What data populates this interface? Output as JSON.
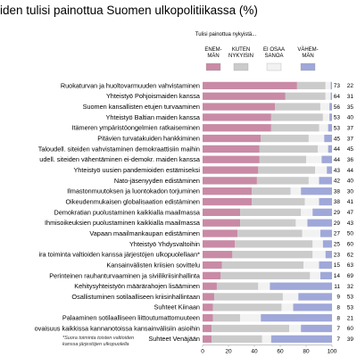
{
  "chart_data": {
    "type": "bar",
    "stacked": true,
    "orientation": "horizontal",
    "title": "iden tulisi painottua Suomen ulkopolitiikassa (%)",
    "legend_title": "Tulisi painottua nykyistä...",
    "series": [
      {
        "name": "ENEM-\nMÄN",
        "color": "#c98aa6"
      },
      {
        "name": "KUTEN\nNYKYISIN",
        "color": "#cbcbcb"
      },
      {
        "name": "EI OSAA\nSANOA",
        "color": "#f2f2f2"
      },
      {
        "name": "VÄHEM-\nMÄN",
        "color": "#9fa8d8"
      }
    ],
    "xlim": [
      0,
      100
    ],
    "xticks": [
      "0",
      "20",
      "40",
      "60",
      "80",
      "100"
    ],
    "categories": [
      "Ruokaturvan ja huoltovarmuuden vahvistaminen",
      "Yhteistyö Pohjoismaiden kanssa",
      "Suomen kansallisten etujen turvaaminen",
      "Yhteistyö Baltian maiden kanssa",
      "Itämeren ympäristöongelmien ratkaiseminen",
      "Pitävien turvatakuiden hankkiminen",
      "Taloudell. siteiden vahvistaminen demokraattisiin maihin",
      "udell. siteiden vähentäminen ei-demokr. maiden kanssa",
      "Yhteistyö uusien pandemioiden estämiseksi",
      "Nato-jäsenyyden edistäminen",
      "Ilmastonmuutoksen ja luontokadon torjuminen",
      "Oikeudenmukaisen globalisaation edistäminen",
      "Demokratian puolustaminen kaikkialla maailmassa",
      "Ihmisoikeuksien puolustaminen kaikkialla maailmassa",
      "Vapaan maailmankaupan edistäminen",
      "Yhteistyö Yhdysvaltoihin",
      "ira toiminta valtioiden kanssa järjestöjen ulkopuolellaan*",
      "Kansainvälisten kriisien sovittelu",
      "Perinteinen rauhanturvaaminen ja siviilikriisinhallinta",
      "Kehitysyhteistyön määrärahojen lisääminen",
      "Osallistuminen sotilaalliseen kriisinhallintaan",
      "Suhteet Kiinaan",
      "Palaaminen sotilaalliseen liittoutumattomuuteen",
      "ovaisuus kaikkissa kannanotoissa kansainvälisiin asioihin",
      "Suhteet Venäjään"
    ],
    "values": [
      [
        73,
        22,
        4,
        1
      ],
      [
        64,
        31,
        4,
        1
      ],
      [
        56,
        35,
        7,
        2
      ],
      [
        53,
        40,
        5,
        2
      ],
      [
        53,
        37,
        7,
        3
      ],
      [
        45,
        37,
        12,
        6
      ],
      [
        44,
        45,
        8,
        3
      ],
      [
        44,
        36,
        12,
        8
      ],
      [
        43,
        44,
        9,
        4
      ],
      [
        42,
        40,
        8,
        10
      ],
      [
        38,
        30,
        8,
        24
      ],
      [
        38,
        41,
        11,
        10
      ],
      [
        29,
        47,
        9,
        15
      ],
      [
        29,
        43,
        9,
        19
      ],
      [
        27,
        50,
        14,
        9
      ],
      [
        25,
        60,
        8,
        7
      ],
      [
        23,
        62,
        10,
        5
      ],
      [
        15,
        63,
        12,
        10
      ],
      [
        14,
        69,
        8,
        9
      ],
      [
        11,
        32,
        9,
        48
      ],
      [
        9,
        53,
        12,
        26
      ],
      [
        8,
        53,
        9,
        30
      ],
      [
        8,
        21,
        16,
        55
      ],
      [
        7,
        60,
        9,
        24
      ],
      [
        7,
        39,
        7,
        47
      ]
    ],
    "right_labels": [
      [
        "73",
        "22"
      ],
      [
        "64",
        "31"
      ],
      [
        "56",
        "35"
      ],
      [
        "53",
        "40"
      ],
      [
        "53",
        "37"
      ],
      [
        "45",
        "37"
      ],
      [
        "44",
        "45"
      ],
      [
        "44",
        "36"
      ],
      [
        "43",
        "44"
      ],
      [
        "42",
        "40"
      ],
      [
        "38",
        "30"
      ],
      [
        "38",
        "41"
      ],
      [
        "29",
        "47"
      ],
      [
        "29",
        "43"
      ],
      [
        "27",
        "50"
      ],
      [
        "25",
        "60"
      ],
      [
        "23",
        "62"
      ],
      [
        "15",
        "63"
      ],
      [
        "14",
        "69"
      ],
      [
        "11",
        "32"
      ],
      [
        "9",
        "53"
      ],
      [
        "8",
        "53"
      ],
      [
        "8",
        "21"
      ],
      [
        "7",
        "60"
      ],
      [
        "7",
        "39"
      ]
    ]
  },
  "footnote": "*Suora toiminta toisten valtioiden\nkanssa järjestöjen ulkopuolella"
}
